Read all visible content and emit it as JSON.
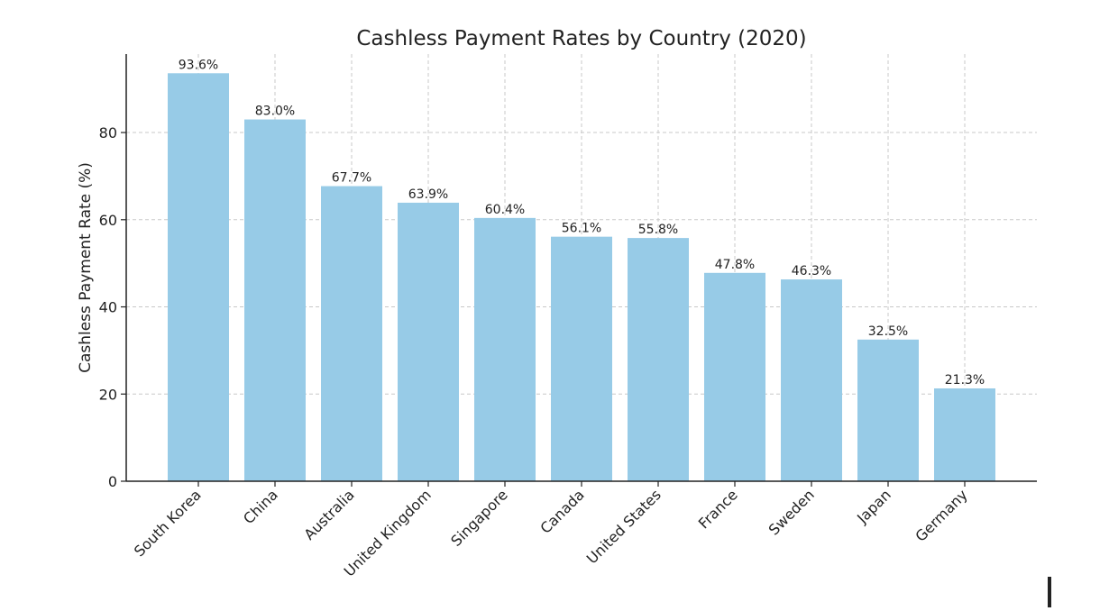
{
  "colors": {
    "bar": "#97cbe7",
    "grid": "#c8c8c8",
    "axis": "#222222",
    "text": "#222222"
  },
  "chart_data": {
    "type": "bar",
    "title": "Cashless Payment Rates by Country (2020)",
    "xlabel": "",
    "ylabel": "Cashless Payment Rate (%)",
    "ylim": [
      0,
      98
    ],
    "yticks": [
      0,
      20,
      40,
      60,
      80
    ],
    "grid": true,
    "categories": [
      "South Korea",
      "China",
      "Australia",
      "United Kingdom",
      "Singapore",
      "Canada",
      "United States",
      "France",
      "Sweden",
      "Japan",
      "Germany"
    ],
    "values": [
      93.6,
      83.0,
      67.7,
      63.9,
      60.4,
      56.1,
      55.8,
      47.8,
      46.3,
      32.5,
      21.3
    ],
    "value_labels": [
      "93.6%",
      "83.0%",
      "67.7%",
      "63.9%",
      "60.4%",
      "56.1%",
      "55.8%",
      "47.8%",
      "46.3%",
      "32.5%",
      "21.3%"
    ]
  }
}
